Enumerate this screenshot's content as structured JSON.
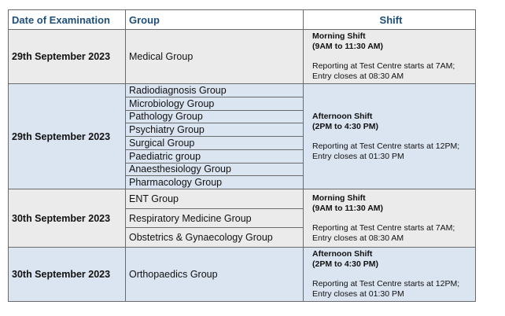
{
  "table": {
    "headers": [
      "Date of Examination",
      "Group",
      "Shift"
    ],
    "rows": [
      {
        "date": "29th September 2023",
        "groups": [
          "Medical Group"
        ],
        "shift": {
          "name": "Morning Shift",
          "time": "(9AM to 11:30 AM)",
          "note": "Reporting at Test Centre starts at 7AM; Entry closes at 08:30 AM"
        }
      },
      {
        "date": "29th September 2023",
        "groups": [
          "Radiodiagnosis Group",
          "Microbiology Group",
          "Pathology Group",
          "Psychiatry Group",
          "Surgical Group",
          "Paediatric group",
          "Anaesthesiology Group",
          "Pharmacology Group"
        ],
        "shift": {
          "name": "Afternoon Shift",
          "time": "(2PM to 4:30 PM)",
          "note": "Reporting at Test Centre starts at 12PM; Entry closes at 01:30 PM"
        }
      },
      {
        "date": "30th September 2023",
        "groups": [
          "ENT Group",
          "Respiratory Medicine Group",
          "Obstetrics & Gynaecology Group"
        ],
        "shift": {
          "name": "Morning Shift",
          "time": "(9AM to 11:30 AM)",
          "note": "Reporting at Test Centre starts at 7AM; Entry closes at 08:30 AM"
        }
      },
      {
        "date": "30th September 2023",
        "groups": [
          "Orthopaedics Group"
        ],
        "shift": {
          "name": "Afternoon Shift",
          "time": "(2PM to 4:30 PM)",
          "note": "Reporting at Test Centre starts at 12PM; Entry closes at 01:30 PM"
        }
      }
    ]
  }
}
